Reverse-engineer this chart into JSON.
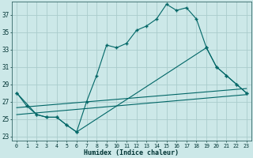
{
  "bg_color": "#cce8e8",
  "grid_color": "#aacccc",
  "line_color": "#006666",
  "xlabel": "Humidex (Indice chaleur)",
  "xlim": [
    -0.5,
    23.5
  ],
  "ylim": [
    22.5,
    38.5
  ],
  "xticks": [
    0,
    1,
    2,
    3,
    4,
    5,
    6,
    7,
    8,
    9,
    10,
    11,
    12,
    13,
    14,
    15,
    16,
    17,
    18,
    19,
    20,
    21,
    22,
    23
  ],
  "yticks": [
    23,
    25,
    27,
    29,
    31,
    33,
    35,
    37
  ],
  "curve_x": [
    0,
    1,
    2,
    3,
    4,
    5,
    6,
    7,
    8,
    9,
    10,
    11,
    12,
    13,
    14,
    15,
    16,
    17,
    18,
    19,
    20,
    21,
    22,
    23
  ],
  "curve_y": [
    28.0,
    26.5,
    25.5,
    25.2,
    25.2,
    24.3,
    23.5,
    27.0,
    30.0,
    33.5,
    33.2,
    33.7,
    35.2,
    35.7,
    36.5,
    38.2,
    37.5,
    37.8,
    36.5,
    33.2,
    31.0,
    30.0,
    29.0,
    28.0
  ],
  "trend1_x": [
    0,
    23
  ],
  "trend1_y": [
    25.5,
    27.8
  ],
  "trend2_x": [
    0,
    23
  ],
  "trend2_y": [
    26.3,
    28.5
  ],
  "lower_x": [
    0,
    2,
    3,
    4,
    5,
    6,
    19,
    20,
    21,
    22,
    23
  ],
  "lower_y": [
    28.0,
    25.5,
    25.2,
    25.2,
    24.3,
    23.5,
    33.2,
    31.0,
    30.0,
    29.0,
    28.0
  ]
}
